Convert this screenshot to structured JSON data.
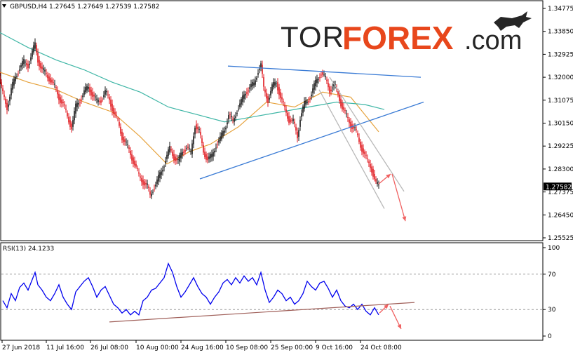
{
  "header": {
    "symbol_line": "GBPUSD,H4  1.27645 1.27649 1.27539 1.27582"
  },
  "logo": {
    "part1": "TOR",
    "part2": "FOREX",
    "part3": ".com",
    "icon": "bull-icon"
  },
  "chart_data": [
    {
      "type": "candlestick",
      "symbol": "GBPUSD",
      "timeframe": "H4",
      "ohlc_last": {
        "open": 1.27645,
        "high": 1.27649,
        "low": 1.27539,
        "close": 1.27582
      },
      "current_price_label": "1.27582",
      "y_ticks": [
        "1.34775",
        "1.33850",
        "1.32925",
        "1.32000",
        "1.31075",
        "1.30150",
        "1.29225",
        "1.28300",
        "1.27375",
        "1.26450",
        "1.25525"
      ],
      "ylim": [
        1.25525,
        1.34775
      ],
      "x_ticks": [
        "27 Jun 2018",
        "11 Jul 16:00",
        "26 Jul 08:00",
        "10 Aug 00:00",
        "24 Aug 16:00",
        "10 Sep 08:00",
        "25 Sep 00:00",
        "9 Oct 16:00",
        "24 Oct 08:00"
      ],
      "close_path": [
        [
          0,
          1.3205
        ],
        [
          6,
          1.313
        ],
        [
          12,
          1.308
        ],
        [
          18,
          1.315
        ],
        [
          24,
          1.32
        ],
        [
          30,
          1.324
        ],
        [
          36,
          1.326
        ],
        [
          42,
          1.325
        ],
        [
          48,
          1.33
        ],
        [
          52,
          1.333
        ],
        [
          56,
          1.327
        ],
        [
          62,
          1.323
        ],
        [
          68,
          1.321
        ],
        [
          74,
          1.319
        ],
        [
          80,
          1.316
        ],
        [
          86,
          1.312
        ],
        [
          92,
          1.309
        ],
        [
          98,
          1.304
        ],
        [
          104,
          1.3
        ],
        [
          110,
          1.308
        ],
        [
          116,
          1.311
        ],
        [
          122,
          1.314
        ],
        [
          128,
          1.316
        ],
        [
          134,
          1.313
        ],
        [
          140,
          1.31
        ],
        [
          146,
          1.311
        ],
        [
          152,
          1.314
        ],
        [
          158,
          1.311
        ],
        [
          164,
          1.306
        ],
        [
          170,
          1.302
        ],
        [
          176,
          1.296
        ],
        [
          182,
          1.293
        ],
        [
          188,
          1.289
        ],
        [
          194,
          1.285
        ],
        [
          200,
          1.28
        ],
        [
          206,
          1.278
        ],
        [
          212,
          1.276
        ],
        [
          216,
          1.272
        ],
        [
          220,
          1.275
        ],
        [
          226,
          1.278
        ],
        [
          232,
          1.282
        ],
        [
          238,
          1.287
        ],
        [
          244,
          1.291
        ],
        [
          250,
          1.288
        ],
        [
          256,
          1.286
        ],
        [
          262,
          1.29
        ],
        [
          268,
          1.292
        ],
        [
          274,
          1.289
        ],
        [
          280,
          1.301
        ],
        [
          286,
          1.298
        ],
        [
          292,
          1.29
        ],
        [
          298,
          1.287
        ],
        [
          304,
          1.288
        ],
        [
          310,
          1.293
        ],
        [
          316,
          1.295
        ],
        [
          322,
          1.299
        ],
        [
          328,
          1.305
        ],
        [
          334,
          1.302
        ],
        [
          340,
          1.307
        ],
        [
          346,
          1.31
        ],
        [
          352,
          1.314
        ],
        [
          358,
          1.316
        ],
        [
          364,
          1.317
        ],
        [
          370,
          1.323
        ],
        [
          374,
          1.325
        ],
        [
          378,
          1.315
        ],
        [
          384,
          1.311
        ],
        [
          390,
          1.316
        ],
        [
          396,
          1.318
        ],
        [
          402,
          1.312
        ],
        [
          408,
          1.307
        ],
        [
          414,
          1.303
        ],
        [
          420,
          1.302
        ],
        [
          426,
          1.296
        ],
        [
          430,
          1.304
        ],
        [
          436,
          1.309
        ],
        [
          442,
          1.311
        ],
        [
          448,
          1.315
        ],
        [
          454,
          1.319
        ],
        [
          460,
          1.322
        ],
        [
          466,
          1.319
        ],
        [
          472,
          1.315
        ],
        [
          478,
          1.317
        ],
        [
          484,
          1.313
        ],
        [
          490,
          1.308
        ],
        [
          496,
          1.304
        ],
        [
          502,
          1.301
        ],
        [
          508,
          1.299
        ],
        [
          514,
          1.294
        ],
        [
          520,
          1.29
        ],
        [
          526,
          1.286
        ],
        [
          532,
          1.283
        ],
        [
          538,
          1.277
        ],
        [
          542,
          1.27582
        ]
      ],
      "series": [
        {
          "name": "MA-orange",
          "color": "#e6a23c",
          "points": [
            [
              0,
              1.322
            ],
            [
              40,
              1.318
            ],
            [
              80,
              1.315
            ],
            [
              120,
              1.31
            ],
            [
              160,
              1.306
            ],
            [
              200,
              1.296
            ],
            [
              238,
              1.285
            ],
            [
              270,
              1.29
            ],
            [
              300,
              1.293
            ],
            [
              340,
              1.3
            ],
            [
              380,
              1.31
            ],
            [
              420,
              1.308
            ],
            [
              460,
              1.314
            ],
            [
              500,
              1.312
            ],
            [
              540,
              1.298
            ]
          ]
        },
        {
          "name": "MA-teal",
          "color": "#3fb6a6",
          "points": [
            [
              0,
              1.338
            ],
            [
              40,
              1.332
            ],
            [
              80,
              1.327
            ],
            [
              120,
              1.323
            ],
            [
              160,
              1.318
            ],
            [
              200,
              1.314
            ],
            [
              240,
              1.308
            ],
            [
              280,
              1.305
            ],
            [
              320,
              1.302
            ],
            [
              360,
              1.304
            ],
            [
              400,
              1.306
            ],
            [
              440,
              1.308
            ],
            [
              480,
              1.31
            ],
            [
              520,
              1.309
            ],
            [
              548,
              1.307
            ]
          ]
        }
      ],
      "annotations": {
        "blue_lines": [
          {
            "from": [
              325,
              1.3245
            ],
            "to": [
              600,
              1.32
            ]
          },
          {
            "from": [
              285,
              1.279
            ],
            "to": [
              604,
              1.31
            ]
          }
        ],
        "gray_channel": [
          {
            "from": [
              470,
              1.32
            ],
            "to": [
              576,
              1.274
            ]
          },
          {
            "from": [
              455,
              1.315
            ],
            "to": [
              548,
              1.267
            ]
          }
        ],
        "red_arrows": [
          {
            "from": [
              540,
              1.277
            ],
            "to": [
              557,
              1.281
            ]
          },
          {
            "from": [
              559,
              1.281
            ],
            "to": [
              578,
              1.262
            ]
          }
        ]
      }
    },
    {
      "type": "line",
      "title": "RSI(13) 24.1233",
      "y_ticks": [
        "100",
        "70",
        "30",
        "0"
      ],
      "ylim": [
        0,
        100
      ],
      "levels": [
        70,
        30
      ],
      "series": [
        {
          "name": "RSI(13)",
          "color": "#0000ee",
          "points": [
            [
              4,
              40
            ],
            [
              10,
              32
            ],
            [
              16,
              48
            ],
            [
              22,
              40
            ],
            [
              28,
              55
            ],
            [
              34,
              60
            ],
            [
              40,
              52
            ],
            [
              46,
              64
            ],
            [
              50,
              72
            ],
            [
              54,
              58
            ],
            [
              60,
              52
            ],
            [
              66,
              44
            ],
            [
              72,
              40
            ],
            [
              78,
              48
            ],
            [
              84,
              58
            ],
            [
              90,
              44
            ],
            [
              96,
              36
            ],
            [
              102,
              30
            ],
            [
              108,
              50
            ],
            [
              114,
              56
            ],
            [
              120,
              62
            ],
            [
              126,
              66
            ],
            [
              132,
              56
            ],
            [
              138,
              44
            ],
            [
              144,
              52
            ],
            [
              150,
              56
            ],
            [
              156,
              46
            ],
            [
              162,
              36
            ],
            [
              168,
              32
            ],
            [
              174,
              26
            ],
            [
              180,
              30
            ],
            [
              186,
              24
            ],
            [
              192,
              28
            ],
            [
              198,
              24
            ],
            [
              204,
              40
            ],
            [
              210,
              44
            ],
            [
              216,
              52
            ],
            [
              222,
              54
            ],
            [
              228,
              60
            ],
            [
              234,
              66
            ],
            [
              240,
              82
            ],
            [
              246,
              72
            ],
            [
              252,
              56
            ],
            [
              258,
              44
            ],
            [
              264,
              50
            ],
            [
              270,
              58
            ],
            [
              276,
              66
            ],
            [
              282,
              56
            ],
            [
              288,
              48
            ],
            [
              294,
              44
            ],
            [
              300,
              36
            ],
            [
              306,
              44
            ],
            [
              312,
              50
            ],
            [
              318,
              60
            ],
            [
              324,
              64
            ],
            [
              330,
              58
            ],
            [
              336,
              66
            ],
            [
              342,
              60
            ],
            [
              348,
              68
            ],
            [
              354,
              62
            ],
            [
              360,
              66
            ],
            [
              366,
              58
            ],
            [
              372,
              72
            ],
            [
              378,
              52
            ],
            [
              384,
              38
            ],
            [
              390,
              44
            ],
            [
              396,
              52
            ],
            [
              402,
              48
            ],
            [
              408,
              40
            ],
            [
              414,
              44
            ],
            [
              420,
              36
            ],
            [
              426,
              40
            ],
            [
              432,
              48
            ],
            [
              438,
              62
            ],
            [
              444,
              56
            ],
            [
              450,
              52
            ],
            [
              456,
              60
            ],
            [
              462,
              62
            ],
            [
              468,
              54
            ],
            [
              474,
              44
            ],
            [
              480,
              52
            ],
            [
              486,
              40
            ],
            [
              492,
              34
            ],
            [
              498,
              32
            ],
            [
              504,
              36
            ],
            [
              510,
              30
            ],
            [
              516,
              36
            ],
            [
              522,
              28
            ],
            [
              528,
              24
            ],
            [
              534,
              32
            ],
            [
              540,
              24
            ]
          ]
        }
      ],
      "annotations": {
        "trendline": {
          "from": [
            156,
            16
          ],
          "to": [
            591,
            38
          ]
        },
        "red_arrows": [
          {
            "from": [
              541,
              26
            ],
            "to": [
              554,
              36
            ]
          },
          {
            "from": [
              556,
              34
            ],
            "to": [
              572,
              8
            ]
          }
        ]
      }
    }
  ]
}
